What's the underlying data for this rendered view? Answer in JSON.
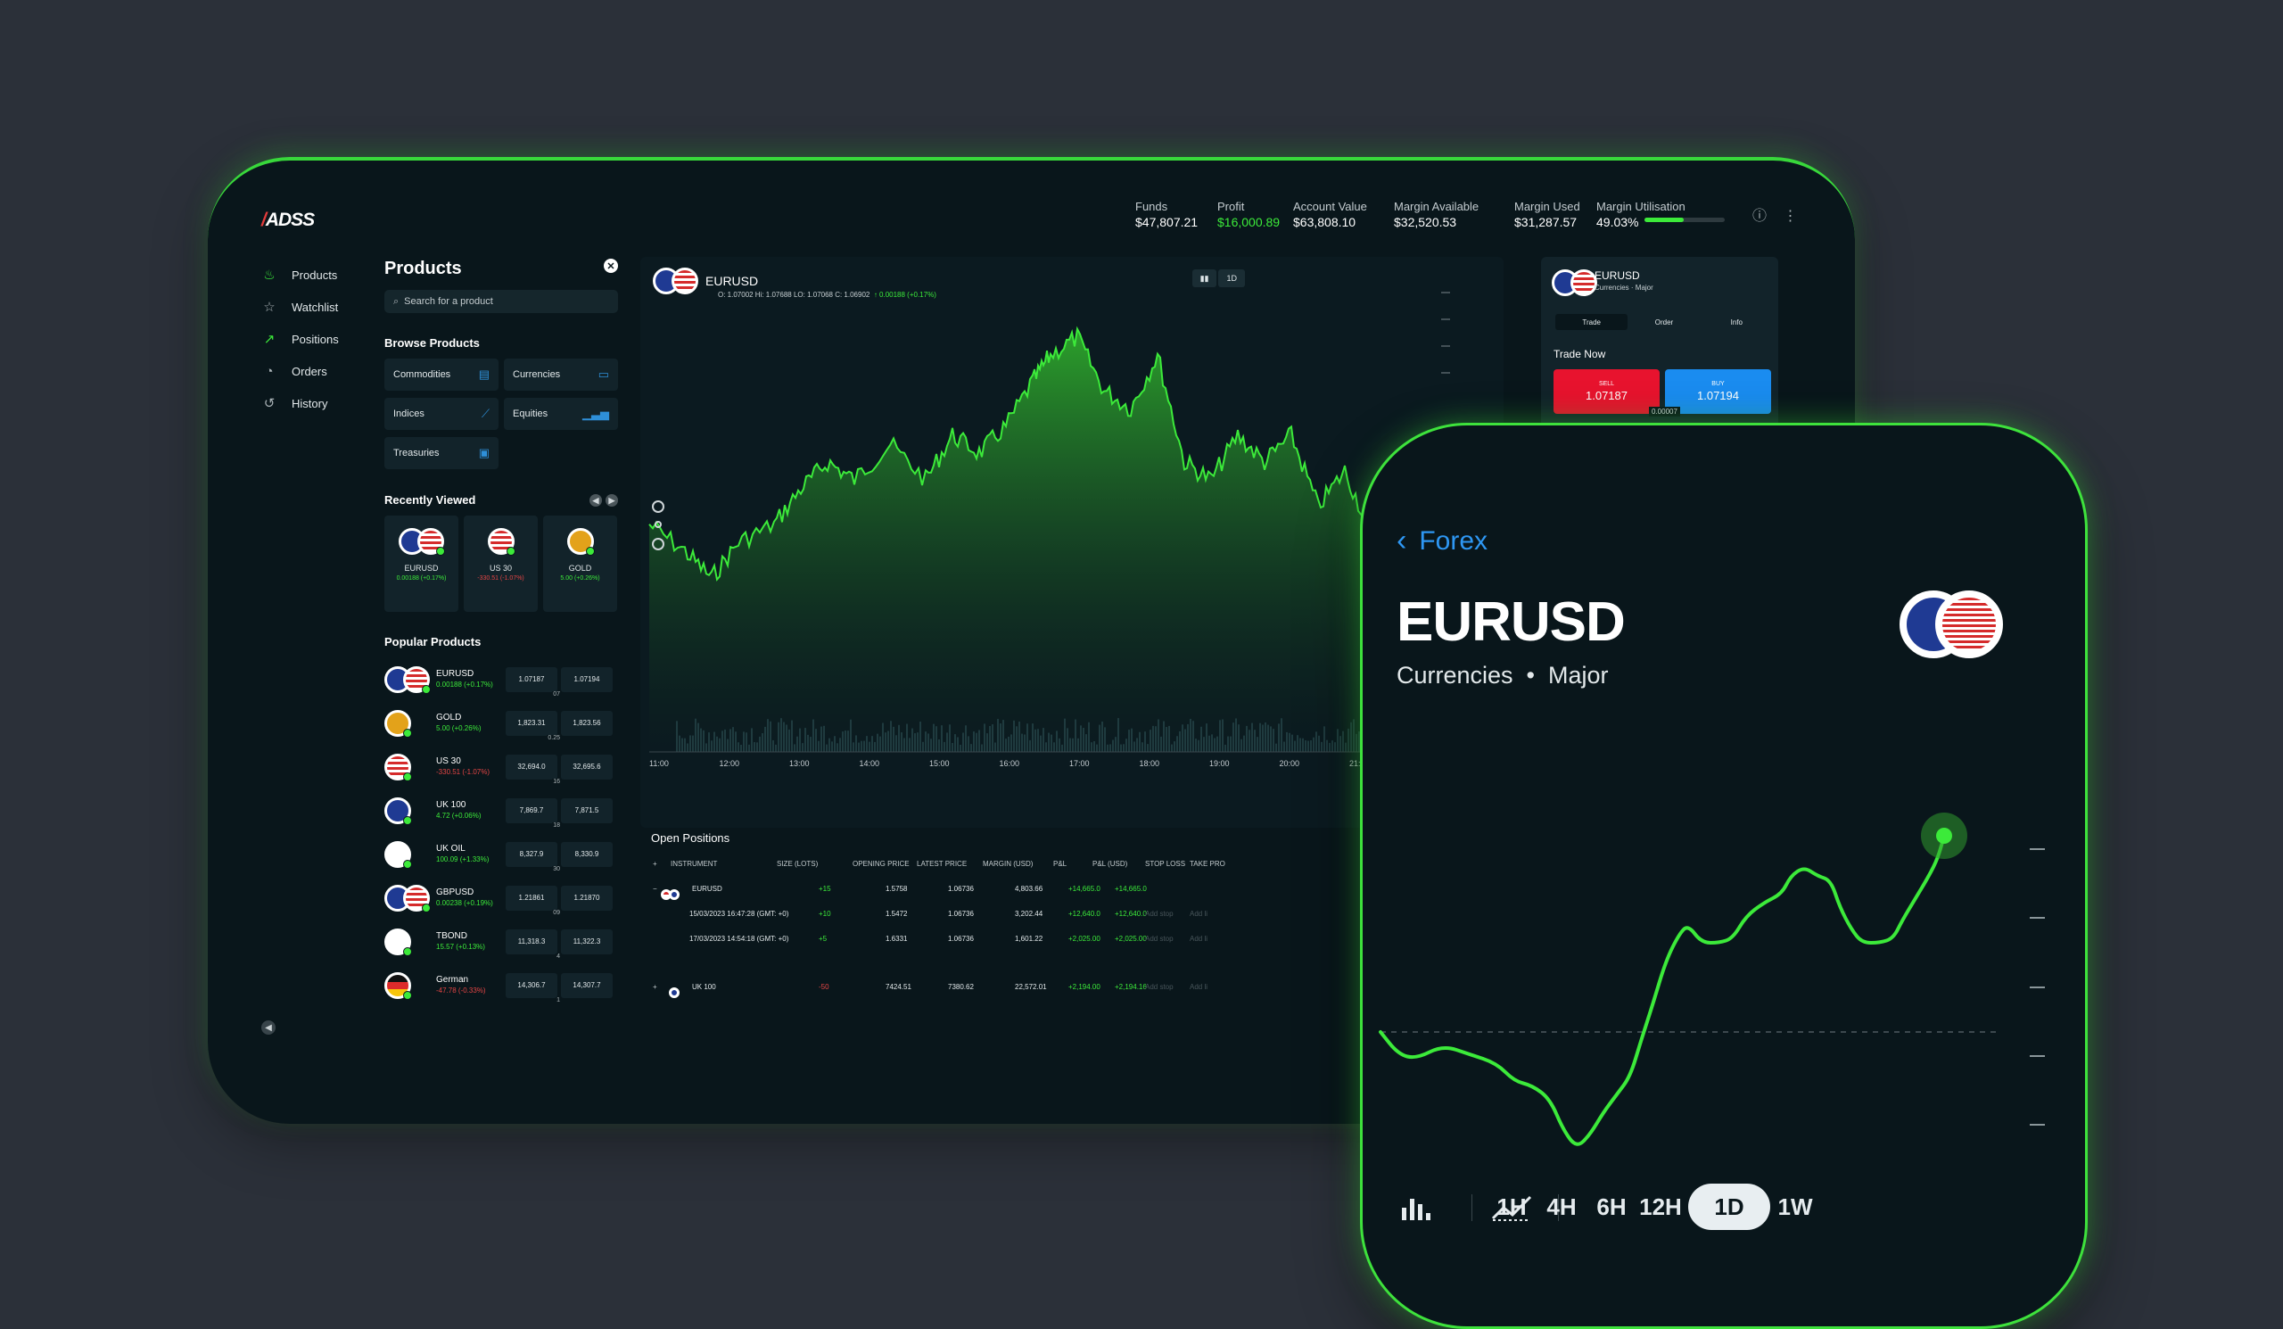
{
  "brand": {
    "logo": "ADSS",
    "logo_prefix": "/"
  },
  "account": [
    {
      "label": "Funds",
      "value": "$47,807.21"
    },
    {
      "label": "Profit",
      "value": "$16,000.89",
      "positive": true
    },
    {
      "label": "Account Value",
      "value": "$63,808.10"
    },
    {
      "label": "Margin Available",
      "value": "$32,520.53"
    },
    {
      "label": "Margin Used",
      "value": "$31,287.57"
    },
    {
      "label": "Margin Utilisation",
      "value": "49.03%",
      "fill": 0.4903
    }
  ],
  "nav": [
    {
      "label": "Products",
      "icon": "flame-icon"
    },
    {
      "label": "Watchlist",
      "icon": "star-icon"
    },
    {
      "label": "Positions",
      "icon": "trend-icon"
    },
    {
      "label": "Orders",
      "icon": "orders-icon"
    },
    {
      "label": "History",
      "icon": "history-icon"
    }
  ],
  "products": {
    "title": "Products",
    "search_placeholder": "Search for a product",
    "browse_title": "Browse Products",
    "browse": [
      "Commodities",
      "Currencies",
      "Indices",
      "Equities",
      "Treasuries"
    ],
    "recent_title": "Recently Viewed",
    "recent": [
      {
        "name": "EURUSD",
        "change": "0.00188 (+0.17%)",
        "dir": "pos",
        "flags": [
          "eu",
          "us"
        ]
      },
      {
        "name": "US 30",
        "change": "-330.51 (-1.07%)",
        "dir": "neg",
        "flags": [
          "us"
        ]
      },
      {
        "name": "GOLD",
        "change": "5.00 (+0.26%)",
        "dir": "pos",
        "flags": [
          "gold"
        ]
      }
    ],
    "popular_title": "Popular Products",
    "popular": [
      {
        "name": "EURUSD",
        "change": "0.00188 (+0.17%)",
        "dir": "pos",
        "bid": "1.07187",
        "ask": "1.07194",
        "spread": "07",
        "flags": [
          "eu",
          "us"
        ]
      },
      {
        "name": "GOLD",
        "change": "5.00 (+0.26%)",
        "dir": "pos",
        "bid": "1,823.31",
        "ask": "1,823.56",
        "spread": "0.25",
        "flags": [
          "gold"
        ]
      },
      {
        "name": "US 30",
        "change": "-330.51 (-1.07%)",
        "dir": "neg",
        "bid": "32,694.0",
        "ask": "32,695.6",
        "spread": "16",
        "flags": [
          "us"
        ]
      },
      {
        "name": "UK 100",
        "change": "4.72 (+0.06%)",
        "dir": "pos",
        "bid": "7,869.7",
        "ask": "7,871.5",
        "spread": "18",
        "flags": [
          "uk"
        ]
      },
      {
        "name": "UK OIL",
        "change": "100.09 (+1.33%)",
        "dir": "pos",
        "bid": "8,327.9",
        "ask": "8,330.9",
        "spread": "30",
        "flags": [
          "oil"
        ]
      },
      {
        "name": "GBPUSD",
        "change": "0.00238 (+0.19%)",
        "dir": "pos",
        "bid": "1.21861",
        "ask": "1.21870",
        "spread": "09",
        "flags": [
          "uk",
          "us"
        ]
      },
      {
        "name": "TBOND",
        "change": "15.57 (+0.13%)",
        "dir": "pos",
        "bid": "11,318.3",
        "ask": "11,322.3",
        "spread": "4",
        "flags": [
          "tb"
        ]
      },
      {
        "name": "German",
        "change": "-47.78 (-0.33%)",
        "dir": "neg",
        "bid": "14,306.7",
        "ask": "14,307.7",
        "spread": "1",
        "flags": [
          "de"
        ]
      }
    ]
  },
  "chart": {
    "symbol": "EURUSD",
    "ohlc": "O: 1.07002   Hi: 1.07688   LO: 1.07068   C: 1.06902",
    "change": "↑ 0.00188 (+0.17%)",
    "tools": [
      "▮▮",
      "1D"
    ],
    "times": [
      "11:00",
      "12:00",
      "13:00",
      "14:00",
      "15:00",
      "16:00",
      "17:00",
      "18:00",
      "19:00",
      "20:00",
      "21:"
    ]
  },
  "open_positions": {
    "title": "Open Positions",
    "headers": [
      "INSTRUMENT",
      "SIZE (LOTS)",
      "OPENING PRICE",
      "LATEST PRICE",
      "MARGIN (USD)",
      "P&L",
      "P&L (USD)",
      "STOP LOSS",
      "TAKE PRO"
    ],
    "rows": [
      {
        "toggle": "−",
        "inst": "EURUSD",
        "size": "+15",
        "open": "1.5758",
        "latest": "1.06736",
        "margin": "4,803.66",
        "pl": "+14,665.0",
        "plusd": "+14,665.0",
        "sl": "",
        "tp": ""
      },
      {
        "toggle": "",
        "inst": "15/03/2023 16:47:28 (GMT: +0)",
        "size": "+10",
        "open": "1.5472",
        "latest": "1.06736",
        "margin": "3,202.44",
        "pl": "+12,640.0",
        "plusd": "+12,640.0",
        "sl": "Add stop",
        "tp": "Add li"
      },
      {
        "toggle": "",
        "inst": "17/03/2023 14:54:18 (GMT: +0)",
        "size": "+5",
        "open": "1.6331",
        "latest": "1.06736",
        "margin": "1,601.22",
        "pl": "+2,025.00",
        "plusd": "+2,025.00",
        "sl": "Add stop",
        "tp": "Add li"
      },
      {
        "toggle": "+",
        "inst": "UK 100",
        "size": "-50",
        "open": "7424.51",
        "latest": "7380.62",
        "margin": "22,572.01",
        "pl": "+2,194.00",
        "plusd": "+2,194.16",
        "sl": "Add stop",
        "tp": "Add li"
      }
    ]
  },
  "trade_panel": {
    "symbol": "EURUSD",
    "subtitle": "Currencies · Major",
    "tabs": [
      "Trade",
      "Order",
      "Info"
    ],
    "trade_now": "Trade Now",
    "sell_label": "SELL",
    "sell_price": "1.07187",
    "buy_label": "BUY",
    "buy_price": "1.07194",
    "spread": "0.00007"
  },
  "mobile": {
    "back_label": "Forex",
    "symbol": "EURUSD",
    "category": "Currencies",
    "subcategory": "Major",
    "timeframes": [
      "1H",
      "4H",
      "6H",
      "12H",
      "1D",
      "1W"
    ],
    "selected_timeframe": "1D"
  },
  "colors": {
    "accent": "#3cea3a",
    "sell": "#e8132e",
    "buy": "#1a8cf0",
    "link": "#2e97f3",
    "bg": "#09161b"
  }
}
